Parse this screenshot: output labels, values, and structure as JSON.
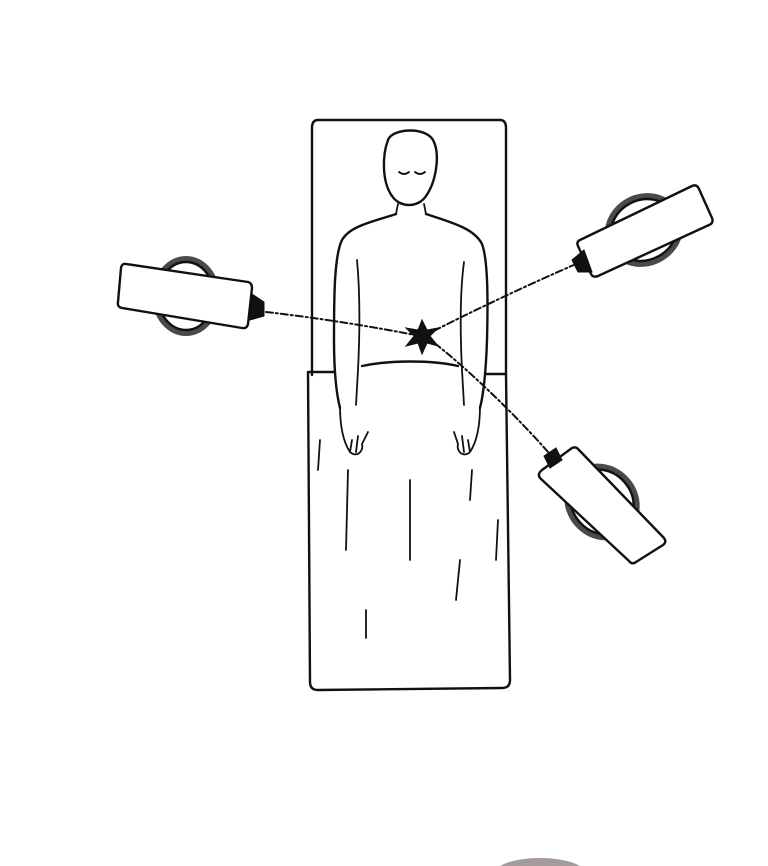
{
  "figure": {
    "subject": "patient-on-treatment-couch",
    "beam_count": 3,
    "colors": {
      "ink": "#111111",
      "background": "#ffffff"
    },
    "icons": [
      "treatment-couch",
      "patient",
      "sheet",
      "radiation-beam",
      "treatment-head",
      "tumor-target"
    ]
  }
}
